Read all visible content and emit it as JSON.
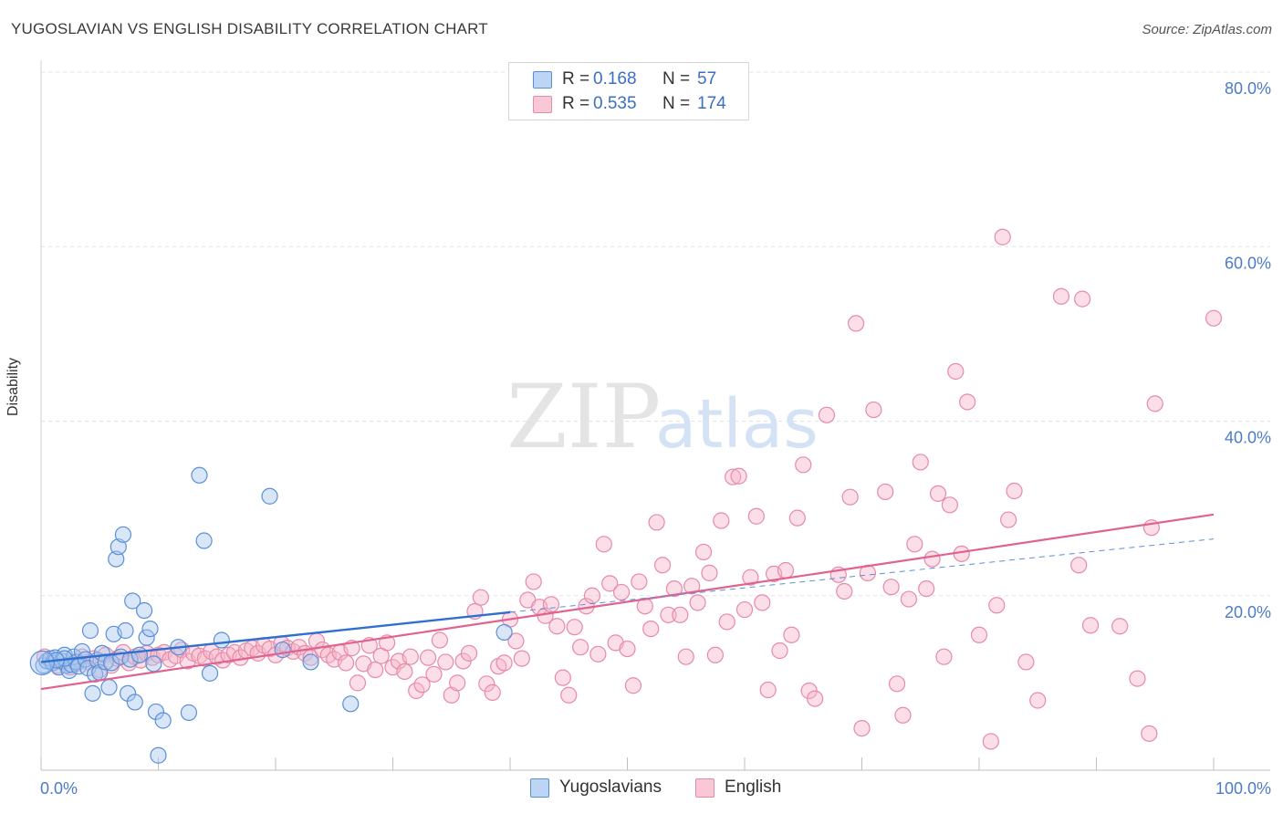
{
  "title": "YUGOSLAVIAN VS ENGLISH DISABILITY CORRELATION CHART",
  "source": "Source: ZipAtlas.com",
  "watermark": {
    "zip": "ZIP",
    "atlas": "atlas"
  },
  "colors": {
    "blue_fill": "#a9c8f0",
    "blue_stroke": "#5a8fd8",
    "blue_line": "#2f6fcf",
    "pink_fill": "#f7b6c9",
    "pink_stroke": "#e68aa8",
    "pink_line": "#e0628f",
    "grid": "#e3e3e3",
    "tick_text": "#4a7cc9"
  },
  "legend": {
    "rows": [
      {
        "r_label": "R =",
        "r_value": "0.168",
        "n_label": "N =",
        "n_value": "57"
      },
      {
        "r_label": "R =",
        "r_value": "0.535",
        "n_label": "N =",
        "n_value": "174"
      }
    ]
  },
  "bottom_legend": [
    "Yugoslavians",
    "English"
  ],
  "chart_data": {
    "type": "scatter",
    "title": "YUGOSLAVIAN VS ENGLISH DISABILITY CORRELATION CHART",
    "xlabel": "",
    "ylabel": "Disability",
    "xlim": [
      0,
      100
    ],
    "ylim": [
      0,
      80
    ],
    "x_tick_labels": [
      "0.0%",
      "100.0%"
    ],
    "y_ticks": [
      20,
      40,
      60,
      80
    ],
    "y_tick_labels": [
      "20.0%",
      "40.0%",
      "60.0%",
      "80.0%"
    ],
    "grid": "horizontal dashed",
    "legend_position": "top-center",
    "series": [
      {
        "name": "Yugoslavians",
        "r": 0.168,
        "n": 57,
        "trend": {
          "x0": 0,
          "y0": 12.4,
          "x1": 40,
          "y1": 18.1,
          "dash_to": 100,
          "dash_y1": 26.5
        },
        "points": [
          [
            0.2,
            12.0
          ],
          [
            0.5,
            12.5
          ],
          [
            0.8,
            12.8
          ],
          [
            1.0,
            12.3
          ],
          [
            1.2,
            12.9
          ],
          [
            1.5,
            11.8
          ],
          [
            1.8,
            12.5
          ],
          [
            2.0,
            13.2
          ],
          [
            2.2,
            12.0
          ],
          [
            2.4,
            11.4
          ],
          [
            2.6,
            12.1
          ],
          [
            2.8,
            13.0
          ],
          [
            3.0,
            12.4
          ],
          [
            3.2,
            11.9
          ],
          [
            3.5,
            13.6
          ],
          [
            3.8,
            12.7
          ],
          [
            4.0,
            11.7
          ],
          [
            4.2,
            16.0
          ],
          [
            4.4,
            8.8
          ],
          [
            4.6,
            11.0
          ],
          [
            4.8,
            12.6
          ],
          [
            5.0,
            11.2
          ],
          [
            5.2,
            13.4
          ],
          [
            5.5,
            12.4
          ],
          [
            5.8,
            9.5
          ],
          [
            6.0,
            12.3
          ],
          [
            6.2,
            15.6
          ],
          [
            6.4,
            24.2
          ],
          [
            6.6,
            25.6
          ],
          [
            6.8,
            13.0
          ],
          [
            7.0,
            27.0
          ],
          [
            7.2,
            16.0
          ],
          [
            7.4,
            8.8
          ],
          [
            7.6,
            12.7
          ],
          [
            7.8,
            19.4
          ],
          [
            8.0,
            7.8
          ],
          [
            8.4,
            13.2
          ],
          [
            8.8,
            18.3
          ],
          [
            9.0,
            15.2
          ],
          [
            9.3,
            16.2
          ],
          [
            9.6,
            12.2
          ],
          [
            9.8,
            6.7
          ],
          [
            10.4,
            5.7
          ],
          [
            10.0,
            1.7
          ],
          [
            11.7,
            14.1
          ],
          [
            12.6,
            6.6
          ],
          [
            13.5,
            33.8
          ],
          [
            13.9,
            26.3
          ],
          [
            14.4,
            11.1
          ],
          [
            15.4,
            14.9
          ],
          [
            19.5,
            31.4
          ],
          [
            20.6,
            13.8
          ],
          [
            23.0,
            12.4
          ],
          [
            26.4,
            7.6
          ],
          [
            39.5,
            15.8
          ],
          [
            2.0,
            12.8
          ],
          [
            1.3,
            12.6
          ]
        ]
      },
      {
        "name": "English",
        "r": 0.535,
        "n": 174,
        "trend": {
          "x0": 0,
          "y0": 9.3,
          "x1": 100,
          "y1": 29.3
        },
        "points": [
          [
            0.3,
            13.0
          ],
          [
            0.8,
            12.5
          ],
          [
            1.4,
            12.0
          ],
          [
            2.0,
            12.5
          ],
          [
            2.5,
            11.8
          ],
          [
            3.0,
            12.2
          ],
          [
            3.5,
            13.0
          ],
          [
            4.0,
            12.4
          ],
          [
            4.5,
            12.8
          ],
          [
            5.0,
            11.5
          ],
          [
            5.5,
            13.2
          ],
          [
            6.0,
            12.0
          ],
          [
            6.5,
            12.8
          ],
          [
            7.0,
            13.5
          ],
          [
            7.5,
            12.3
          ],
          [
            8.0,
            13.0
          ],
          [
            8.5,
            12.6
          ],
          [
            9.0,
            13.4
          ],
          [
            9.5,
            12.9
          ],
          [
            10.0,
            13.2
          ],
          [
            10.5,
            13.5
          ],
          [
            11.0,
            12.7
          ],
          [
            11.5,
            13.1
          ],
          [
            12.0,
            13.8
          ],
          [
            12.5,
            12.5
          ],
          [
            13.0,
            13.4
          ],
          [
            13.5,
            13.1
          ],
          [
            14.0,
            12.8
          ],
          [
            14.5,
            13.6
          ],
          [
            15.0,
            13.0
          ],
          [
            15.5,
            12.6
          ],
          [
            16.0,
            13.2
          ],
          [
            16.5,
            13.5
          ],
          [
            17.0,
            12.9
          ],
          [
            17.5,
            13.7
          ],
          [
            18.0,
            14.0
          ],
          [
            18.5,
            13.4
          ],
          [
            19.0,
            14.3
          ],
          [
            19.5,
            13.9
          ],
          [
            20.0,
            13.2
          ],
          [
            20.5,
            14.5
          ],
          [
            21.0,
            14.0
          ],
          [
            21.5,
            13.6
          ],
          [
            22.0,
            14.1
          ],
          [
            22.5,
            13.4
          ],
          [
            23.0,
            12.9
          ],
          [
            23.5,
            14.8
          ],
          [
            24.0,
            13.8
          ],
          [
            24.5,
            13.2
          ],
          [
            25.0,
            12.7
          ],
          [
            25.5,
            13.5
          ],
          [
            26.0,
            12.3
          ],
          [
            26.5,
            14.0
          ],
          [
            27.0,
            10.0
          ],
          [
            27.5,
            12.2
          ],
          [
            28.0,
            14.3
          ],
          [
            28.5,
            11.5
          ],
          [
            29.0,
            13.1
          ],
          [
            29.5,
            14.6
          ],
          [
            30.0,
            11.8
          ],
          [
            30.5,
            12.5
          ],
          [
            31.0,
            11.3
          ],
          [
            31.5,
            13.0
          ],
          [
            32.0,
            9.1
          ],
          [
            32.5,
            9.8
          ],
          [
            33.0,
            12.9
          ],
          [
            33.5,
            11.0
          ],
          [
            34.0,
            14.9
          ],
          [
            34.5,
            12.4
          ],
          [
            35.0,
            8.6
          ],
          [
            35.5,
            10.0
          ],
          [
            36.0,
            12.5
          ],
          [
            36.5,
            13.4
          ],
          [
            37.0,
            18.2
          ],
          [
            37.5,
            19.8
          ],
          [
            38.0,
            9.9
          ],
          [
            38.5,
            8.9
          ],
          [
            39.0,
            11.9
          ],
          [
            39.5,
            12.3
          ],
          [
            40.0,
            17.3
          ],
          [
            40.5,
            14.8
          ],
          [
            41.0,
            12.8
          ],
          [
            41.5,
            19.5
          ],
          [
            42.0,
            21.6
          ],
          [
            42.5,
            18.7
          ],
          [
            43.0,
            17.7
          ],
          [
            43.5,
            19.0
          ],
          [
            44.0,
            16.5
          ],
          [
            44.5,
            10.6
          ],
          [
            45.0,
            8.6
          ],
          [
            45.5,
            16.4
          ],
          [
            46.0,
            14.1
          ],
          [
            46.5,
            18.8
          ],
          [
            47.0,
            20.0
          ],
          [
            47.5,
            13.3
          ],
          [
            48.0,
            25.9
          ],
          [
            48.5,
            21.4
          ],
          [
            49.0,
            14.6
          ],
          [
            49.5,
            20.4
          ],
          [
            50.0,
            13.9
          ],
          [
            50.5,
            9.7
          ],
          [
            51.0,
            21.6
          ],
          [
            51.5,
            18.8
          ],
          [
            52.0,
            16.2
          ],
          [
            52.5,
            28.4
          ],
          [
            53.0,
            23.5
          ],
          [
            53.5,
            17.8
          ],
          [
            54.0,
            20.8
          ],
          [
            54.5,
            17.8
          ],
          [
            55.0,
            13.0
          ],
          [
            55.5,
            21.1
          ],
          [
            56.0,
            19.2
          ],
          [
            56.5,
            25.0
          ],
          [
            57.0,
            22.6
          ],
          [
            57.5,
            13.2
          ],
          [
            58.0,
            28.6
          ],
          [
            58.5,
            17.0
          ],
          [
            59.0,
            33.6
          ],
          [
            59.5,
            33.7
          ],
          [
            60.0,
            18.4
          ],
          [
            60.5,
            22.1
          ],
          [
            61.0,
            29.1
          ],
          [
            61.5,
            19.2
          ],
          [
            62.0,
            9.2
          ],
          [
            62.5,
            22.5
          ],
          [
            63.0,
            13.7
          ],
          [
            63.5,
            22.9
          ],
          [
            64.0,
            15.5
          ],
          [
            64.5,
            28.9
          ],
          [
            65.0,
            35.0
          ],
          [
            65.5,
            9.1
          ],
          [
            66.0,
            8.2
          ],
          [
            67.0,
            40.7
          ],
          [
            68.0,
            22.4
          ],
          [
            68.5,
            20.5
          ],
          [
            69.0,
            31.3
          ],
          [
            69.5,
            51.2
          ],
          [
            70.0,
            4.8
          ],
          [
            70.5,
            22.6
          ],
          [
            71.0,
            41.3
          ],
          [
            72.0,
            31.9
          ],
          [
            72.5,
            21.0
          ],
          [
            73.0,
            9.9
          ],
          [
            73.5,
            6.3
          ],
          [
            74.0,
            19.6
          ],
          [
            74.5,
            25.9
          ],
          [
            75.0,
            35.3
          ],
          [
            75.5,
            20.8
          ],
          [
            76.0,
            24.2
          ],
          [
            76.5,
            31.7
          ],
          [
            77.0,
            13.0
          ],
          [
            77.5,
            30.4
          ],
          [
            78.0,
            45.7
          ],
          [
            78.5,
            24.8
          ],
          [
            79.0,
            42.2
          ],
          [
            80.0,
            15.5
          ],
          [
            81.0,
            3.3
          ],
          [
            81.5,
            18.9
          ],
          [
            82.0,
            61.1
          ],
          [
            82.5,
            28.7
          ],
          [
            83.0,
            32.0
          ],
          [
            84.0,
            12.4
          ],
          [
            85.0,
            8.0
          ],
          [
            87.0,
            54.3
          ],
          [
            88.5,
            23.5
          ],
          [
            88.8,
            54.0
          ],
          [
            89.5,
            16.6
          ],
          [
            92.0,
            16.5
          ],
          [
            93.5,
            10.5
          ],
          [
            94.5,
            4.2
          ],
          [
            94.7,
            27.8
          ],
          [
            95.0,
            42.0
          ],
          [
            100.0,
            51.8
          ]
        ]
      }
    ]
  }
}
